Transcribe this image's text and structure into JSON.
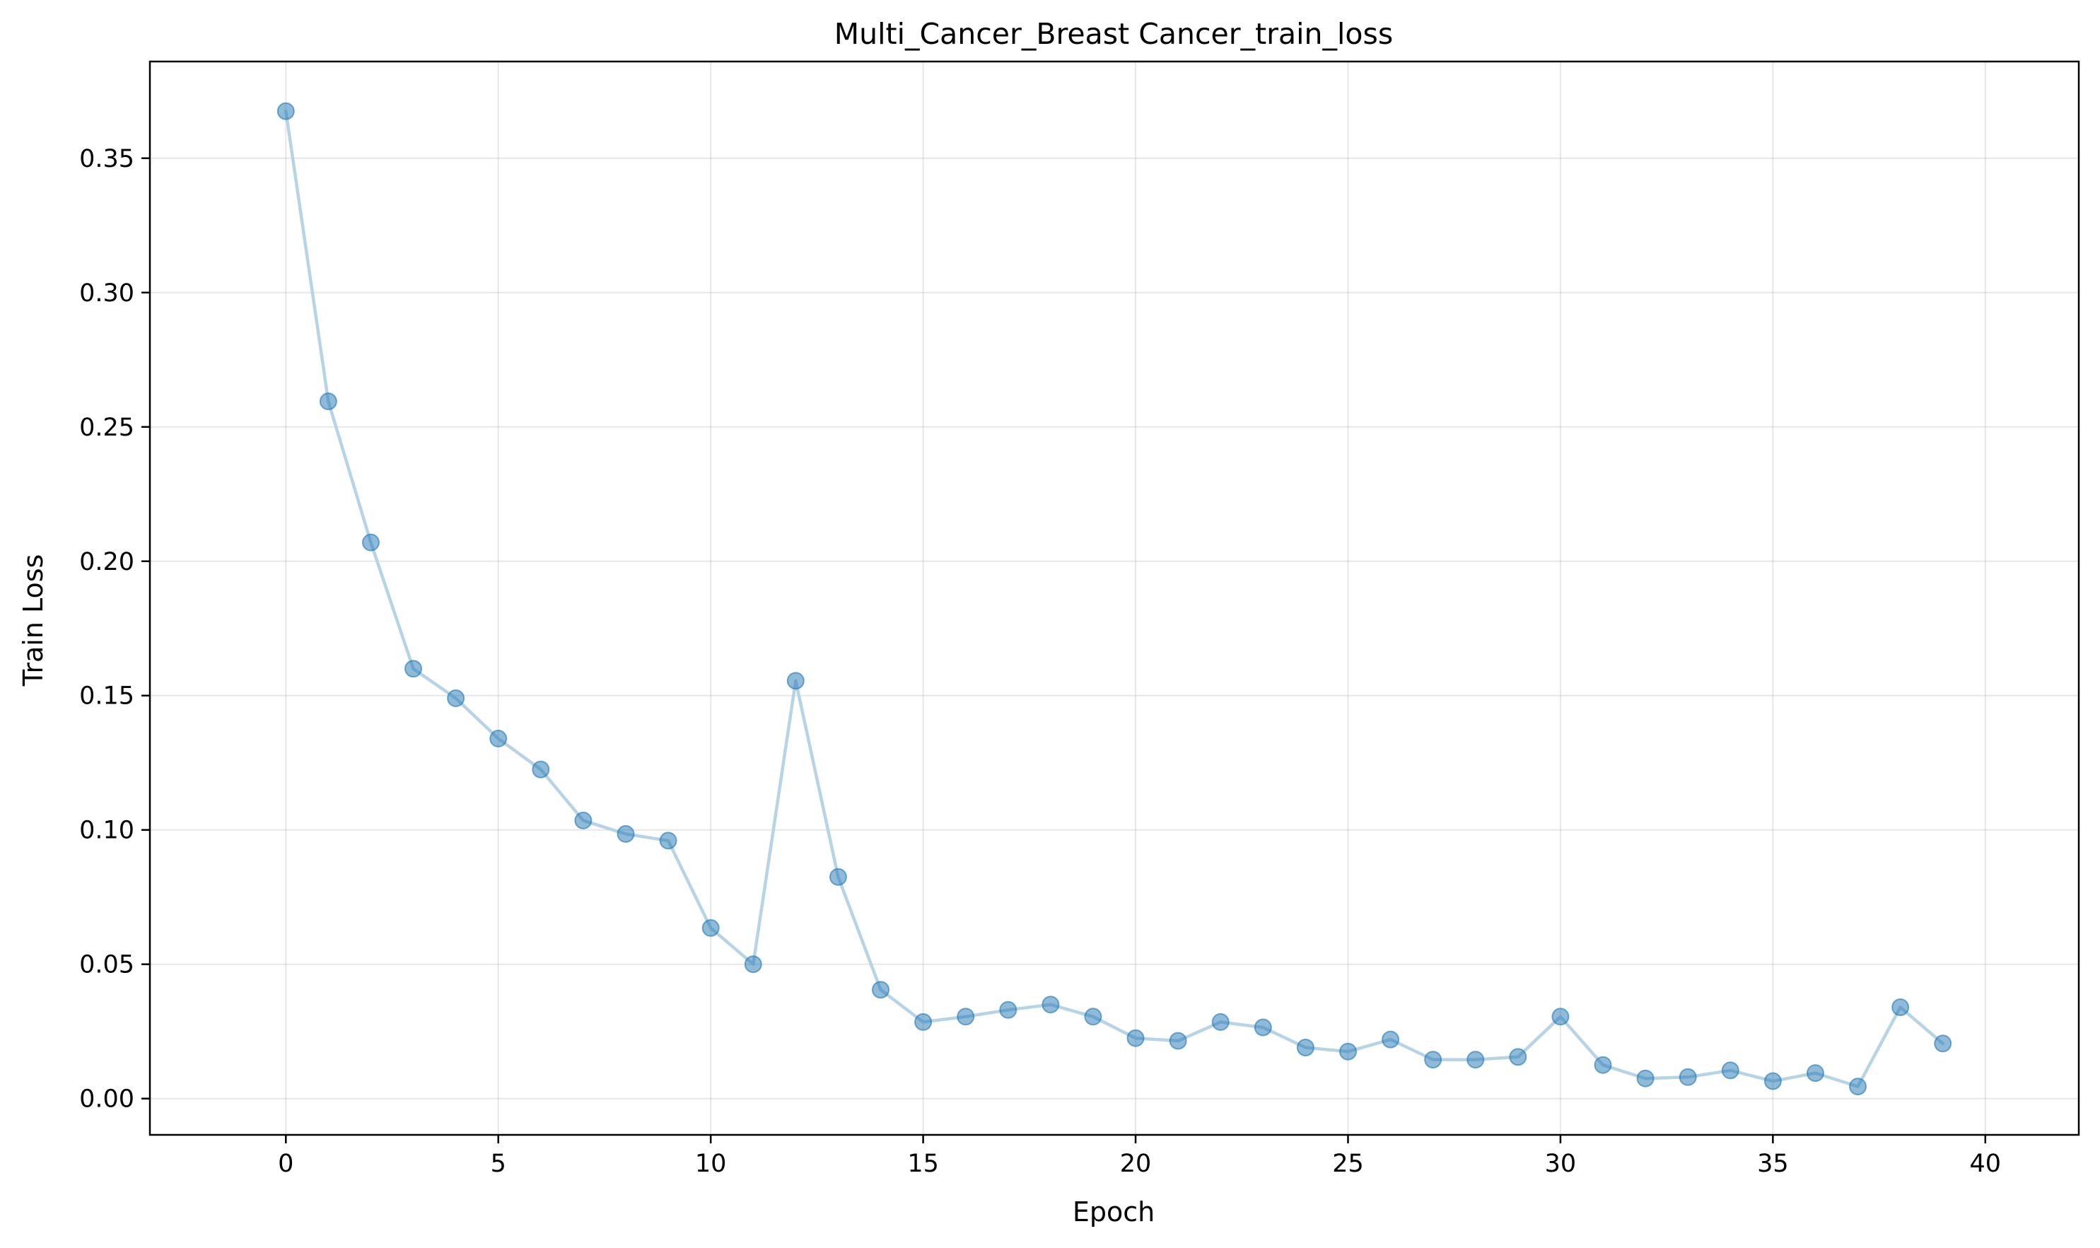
{
  "chart_data": {
    "type": "line",
    "title": "Multi_Cancer_Breast Cancer_train_loss",
    "xlabel": "Epoch",
    "ylabel": "Train Loss",
    "xlim": [
      -3.2,
      42.2
    ],
    "ylim": [
      -0.0135,
      0.386
    ],
    "xticks": [
      0,
      5,
      10,
      15,
      20,
      25,
      30,
      35,
      40
    ],
    "xtick_labels": [
      "0",
      "5",
      "10",
      "15",
      "20",
      "25",
      "30",
      "35",
      "40"
    ],
    "yticks": [
      0.0,
      0.05,
      0.1,
      0.15,
      0.2,
      0.25,
      0.3,
      0.35
    ],
    "ytick_labels": [
      "0.00",
      "0.05",
      "0.10",
      "0.15",
      "0.20",
      "0.25",
      "0.30",
      "0.35"
    ],
    "grid": true,
    "legend": "none",
    "line_color": "#b7d3e6",
    "marker_color": "#1f77b4",
    "x": [
      0,
      1,
      2,
      3,
      4,
      5,
      6,
      7,
      8,
      9,
      10,
      11,
      12,
      13,
      14,
      15,
      16,
      17,
      18,
      19,
      20,
      21,
      22,
      23,
      24,
      25,
      26,
      27,
      28,
      29,
      30,
      31,
      32,
      33,
      34,
      35,
      36,
      37,
      38,
      39
    ],
    "y": [
      0.3675,
      0.2595,
      0.207,
      0.16,
      0.149,
      0.134,
      0.1225,
      0.1035,
      0.0985,
      0.096,
      0.0635,
      0.05,
      0.1555,
      0.0825,
      0.0405,
      0.0285,
      0.0305,
      0.033,
      0.035,
      0.0305,
      0.0225,
      0.0215,
      0.0285,
      0.0265,
      0.019,
      0.0175,
      0.022,
      0.0145,
      0.0145,
      0.0155,
      0.0305,
      0.0125,
      0.0075,
      0.008,
      0.0105,
      0.0065,
      0.0095,
      0.0045,
      0.034,
      0.0205
    ]
  }
}
